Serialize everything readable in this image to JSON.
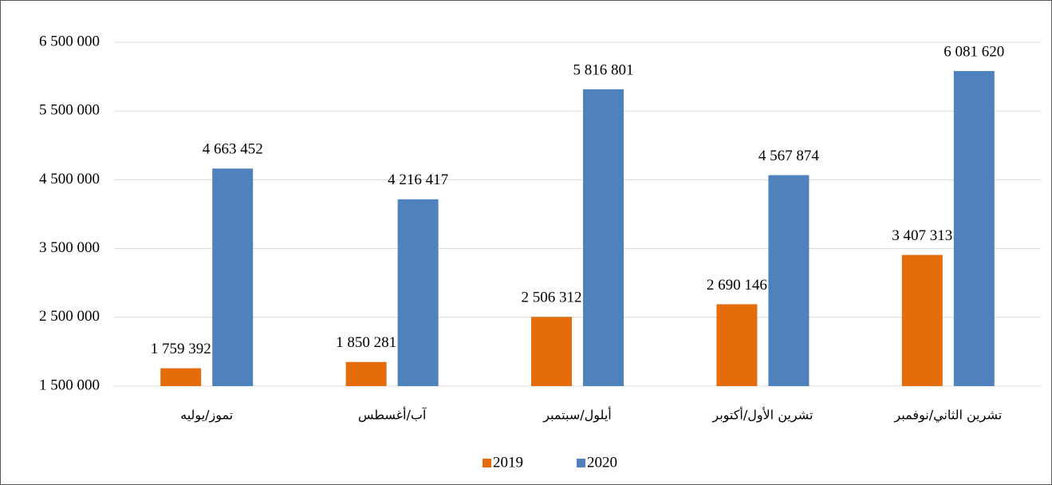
{
  "chart_data": {
    "type": "bar",
    "categories": [
      "تموز/يوليه",
      "آب/أغسطس",
      "أيلول/سبتمبر",
      "تشرين الأول/أكتوبر",
      "تشرين الثاني/نوفمبر"
    ],
    "series": [
      {
        "name": "2019",
        "color": "#e46c0a",
        "values": [
          1759392,
          1850281,
          2506312,
          2690146,
          3407313
        ],
        "value_labels": [
          "1 759 392",
          "1 850 281",
          "2 506 312",
          "2 690 146",
          "3 407 313"
        ]
      },
      {
        "name": "2020",
        "color": "#4f81bd",
        "values": [
          4663452,
          4216417,
          5816801,
          4567874,
          6081620
        ],
        "value_labels": [
          "4 663 452",
          "4 216 417",
          "5 816 801",
          "4 567 874",
          "6 081 620"
        ]
      }
    ],
    "ylim": [
      1500000,
      6500000
    ],
    "yticks": [
      {
        "value": 1500000,
        "label": "1 500 000"
      },
      {
        "value": 2500000,
        "label": "2 500 000"
      },
      {
        "value": 3500000,
        "label": "3 500 000"
      },
      {
        "value": 4500000,
        "label": "4 500 000"
      },
      {
        "value": 5500000,
        "label": "5 500 000"
      },
      {
        "value": 6500000,
        "label": "6 500 000"
      }
    ],
    "grid": true,
    "legend": "bottom"
  }
}
